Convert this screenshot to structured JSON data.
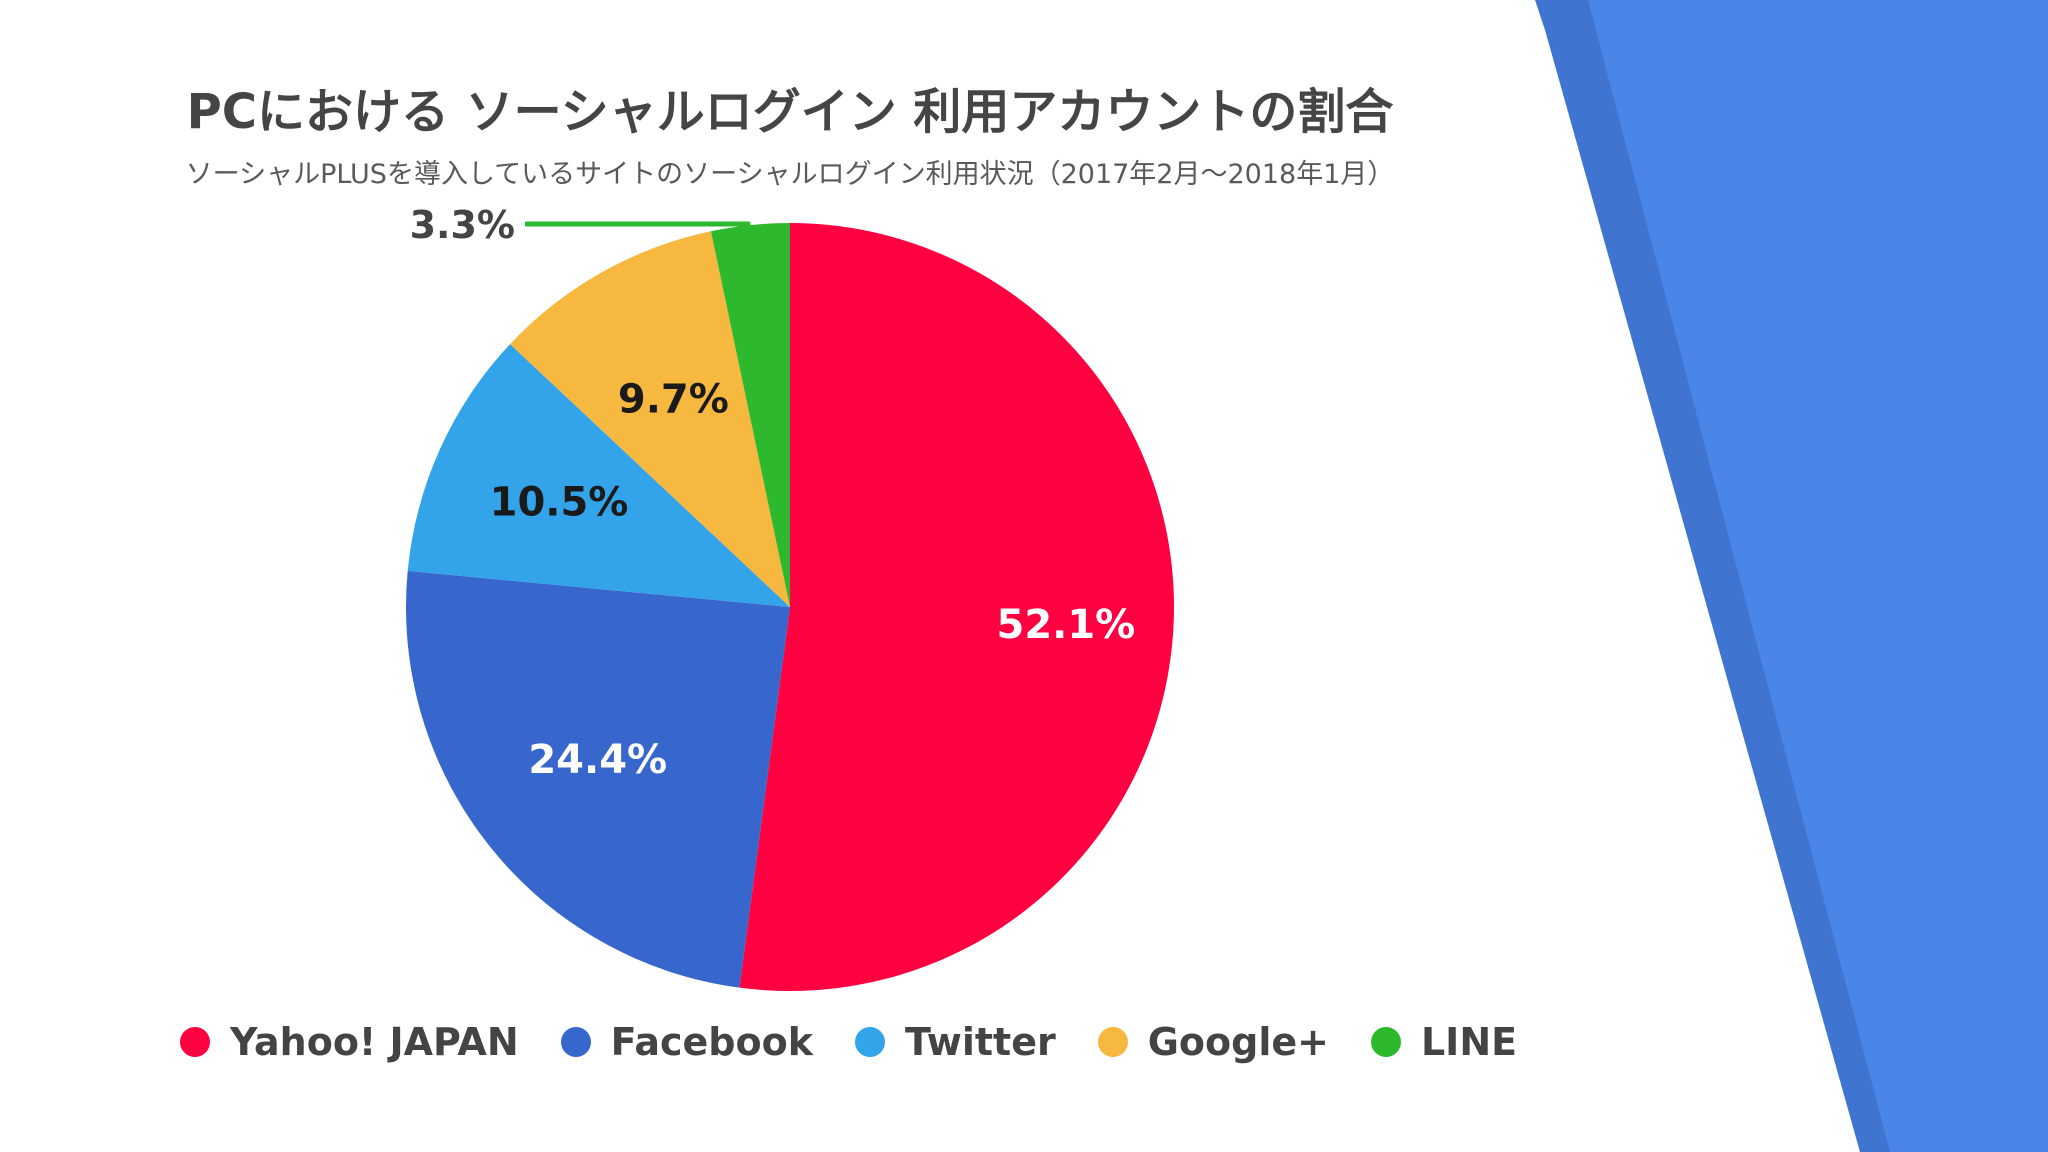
{
  "chart_data": {
    "type": "pie",
    "title": "PCにおける ソーシャルログイン 利用アカウントの割合",
    "subtitle": "ソーシャルPLUSを導入しているサイトのソーシャルログイン利用状況（2017年2月〜2018年1月）",
    "legend_position": "bottom",
    "slices": [
      {
        "name": "Yahoo! JAPAN",
        "value": 52.1,
        "label": "52.1%",
        "color": "#FF0040",
        "label_color": "#ffffff"
      },
      {
        "name": "Facebook",
        "value": 24.4,
        "label": "24.4%",
        "color": "#3766CC",
        "label_color": "#ffffff"
      },
      {
        "name": "Twitter",
        "value": 10.5,
        "label": "10.5%",
        "color": "#33A3EA",
        "label_color": "#1a1a1a"
      },
      {
        "name": "Google+",
        "value": 9.7,
        "label": "9.7%",
        "color": "#F7B840",
        "label_color": "#1a1a1a"
      },
      {
        "name": "LINE",
        "value": 3.3,
        "label": "3.3%",
        "color": "#2DB82D",
        "label_color": "#444444"
      }
    ]
  },
  "decor": {
    "panel_color": "#4A86E8",
    "panel_shadow_color": "#3F75D0"
  }
}
